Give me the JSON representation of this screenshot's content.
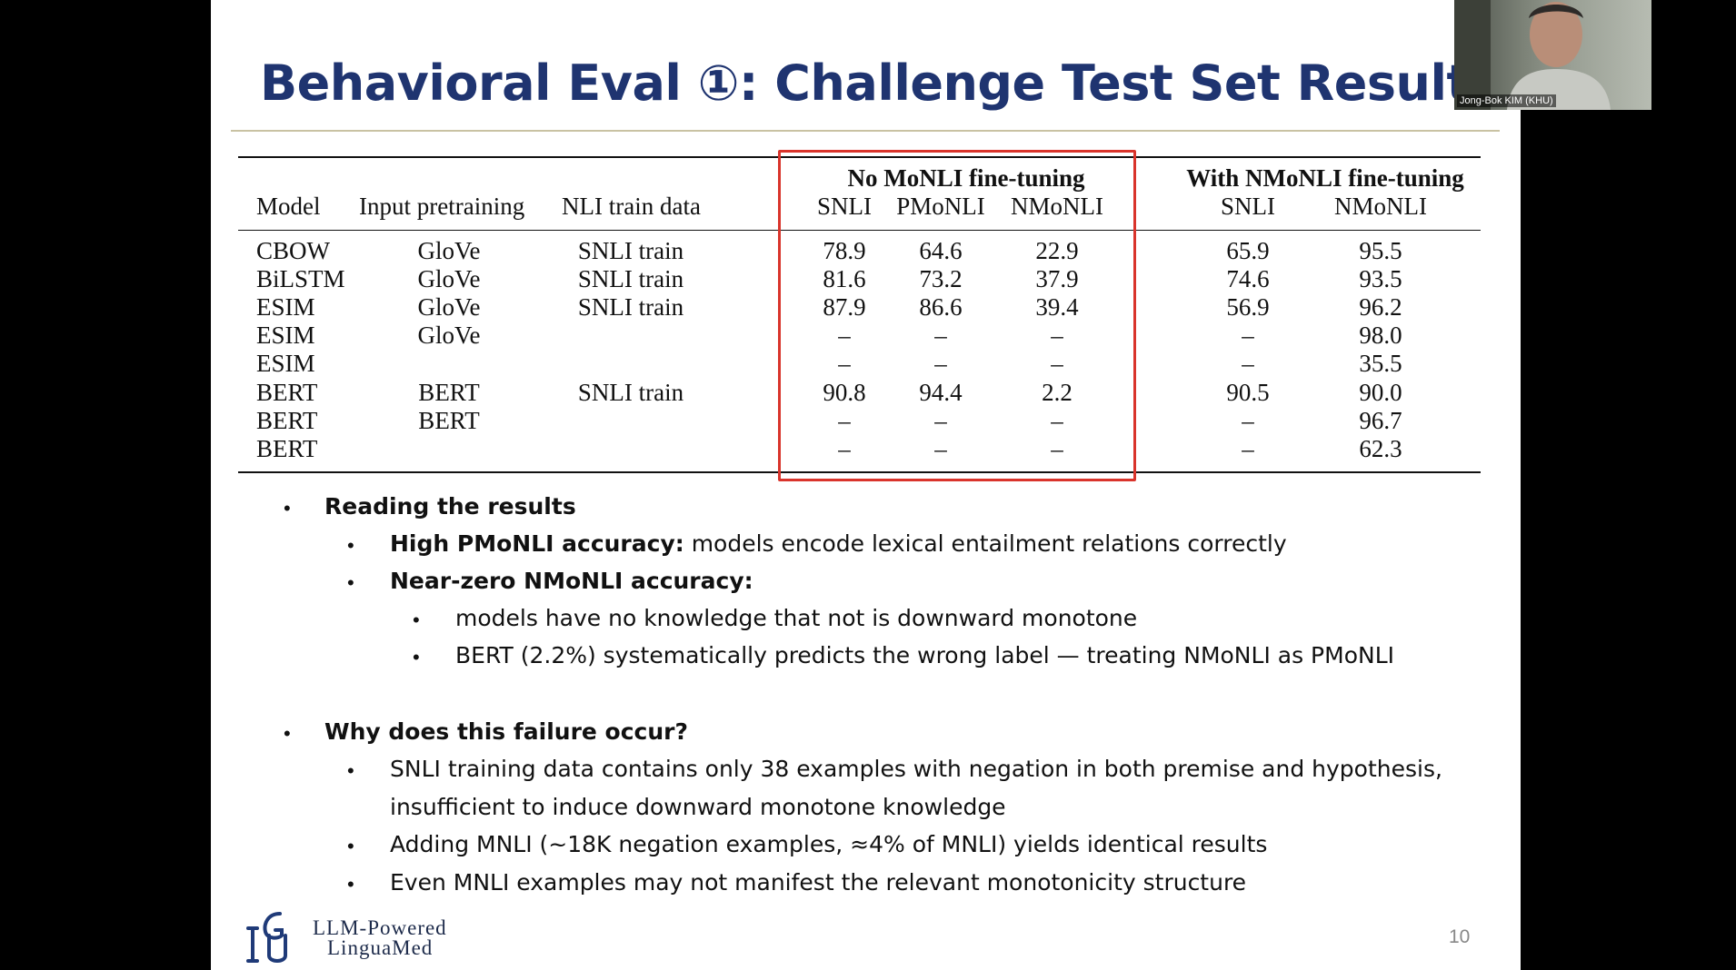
{
  "slide": {
    "title": "Behavioral Eval ①: Challenge Test Set Results",
    "page_number": "10",
    "logo_line1": "LLM-Powered",
    "logo_line2": "LinguaMed"
  },
  "webcam": {
    "name": "Jong-Bok KIM (KHU)"
  },
  "table": {
    "group_no": "No MoNLI fine-tuning",
    "group_with": "With NMoNLI fine-tuning",
    "headers": [
      "Model",
      "Input pretraining",
      "NLI train data",
      "SNLI",
      "PMoNLI",
      "NMoNLI",
      "SNLI",
      "NMoNLI"
    ],
    "rows": [
      [
        "CBOW",
        "GloVe",
        "SNLI train",
        "78.9",
        "64.6",
        "22.9",
        "65.9",
        "95.5"
      ],
      [
        "BiLSTM",
        "GloVe",
        "SNLI train",
        "81.6",
        "73.2",
        "37.9",
        "74.6",
        "93.5"
      ],
      [
        "ESIM",
        "GloVe",
        "SNLI train",
        "87.9",
        "86.6",
        "39.4",
        "56.9",
        "96.2"
      ],
      [
        "ESIM",
        "GloVe",
        "",
        "–",
        "–",
        "–",
        "–",
        "98.0"
      ],
      [
        "ESIM",
        "",
        "",
        "–",
        "–",
        "–",
        "–",
        "35.5"
      ],
      [
        "BERT",
        "BERT",
        "SNLI train",
        "90.8",
        "94.4",
        "2.2",
        "90.5",
        "90.0"
      ],
      [
        "BERT",
        "BERT",
        "",
        "–",
        "–",
        "–",
        "–",
        "96.7"
      ],
      [
        "BERT",
        "",
        "",
        "–",
        "–",
        "–",
        "–",
        "62.3"
      ]
    ]
  },
  "bullets": {
    "b1": "Reading the results",
    "b1_1_bold": "High PMoNLI accuracy:",
    "b1_1_rest": " models encode lexical entailment relations correctly",
    "b1_2_bold": "Near-zero NMoNLI accuracy:",
    "b1_2_1": "models have no knowledge that not is downward monotone",
    "b1_2_2": "BERT (2.2%) systematically predicts the wrong label — treating NMoNLI as PMoNLI",
    "b2": "Why does this failure occur?",
    "b2_1a": "SNLI training data contains only 38 examples with negation in both premise and hypothesis,",
    "b2_1b": "insufficient to induce downward monotone knowledge",
    "b2_2": "Adding MNLI (~18K negation examples, ≈4% of MNLI) yields identical results",
    "b2_3": "Even MNLI examples may not manifest the relevant monotonicity structure"
  }
}
